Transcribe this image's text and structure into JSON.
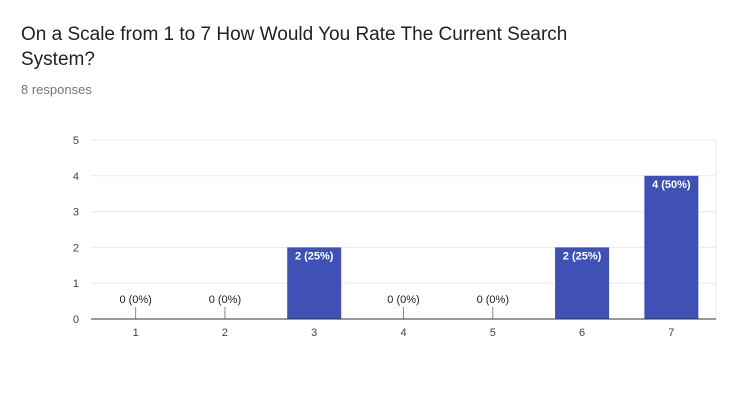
{
  "header": {
    "title": "On a Scale from 1 to 7 How Would You Rate The Current Search System?",
    "subtitle": "8 responses"
  },
  "colors": {
    "bar": "#3f51b5",
    "grid": "#ebebeb",
    "axis": "#333333",
    "label_inside": "#ffffff",
    "label_outside": "#222222"
  },
  "chart_data": {
    "type": "bar",
    "title": "On a Scale from 1 to 7 How Would You Rate The Current Search System?",
    "xlabel": "",
    "ylabel": "",
    "categories": [
      "1",
      "2",
      "3",
      "4",
      "5",
      "6",
      "7"
    ],
    "values": [
      0,
      0,
      2,
      0,
      0,
      2,
      4
    ],
    "data_labels": [
      "0 (0%)",
      "0 (0%)",
      "2 (25%)",
      "0 (0%)",
      "0 (0%)",
      "2 (25%)",
      "4 (50%)"
    ],
    "ylim": [
      0,
      5
    ],
    "yticks": [
      "0",
      "1",
      "2",
      "3",
      "4",
      "5"
    ],
    "grid": true,
    "legend": "none"
  }
}
